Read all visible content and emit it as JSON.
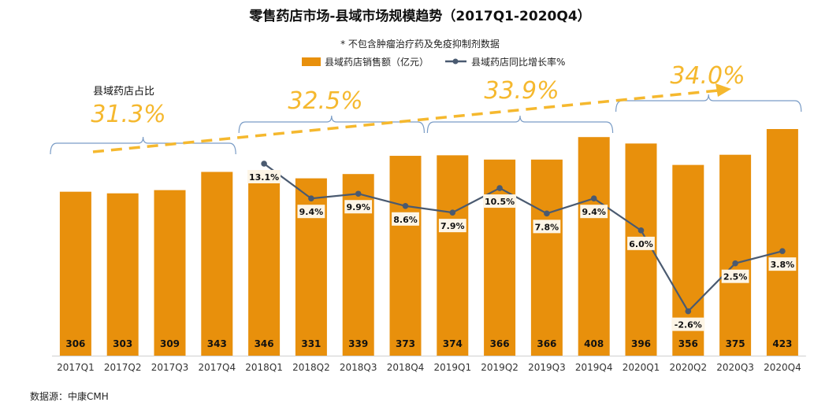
{
  "chart_data": {
    "type": "bar",
    "title": "零售药店市场-县域市场规模趋势（2017Q1-2020Q4）",
    "subtitle": "* 不包含肿瘤治疗药及免疫抑制剂数据",
    "categories": [
      "2017Q1",
      "2017Q2",
      "2017Q3",
      "2017Q4",
      "2018Q1",
      "2018Q2",
      "2018Q3",
      "2018Q4",
      "2019Q1",
      "2019Q2",
      "2019Q3",
      "2019Q4",
      "2020Q1",
      "2020Q2",
      "2020Q3",
      "2020Q4"
    ],
    "series": [
      {
        "name": "县域药店销售额（亿元）",
        "type": "bar",
        "values": [
          306,
          303,
          309,
          343,
          346,
          331,
          339,
          373,
          374,
          366,
          366,
          408,
          396,
          356,
          375,
          423
        ]
      },
      {
        "name": "县域药店同比增长率%",
        "type": "line",
        "values": [
          null,
          null,
          null,
          null,
          13.1,
          9.4,
          9.9,
          8.6,
          7.9,
          10.5,
          7.8,
          9.4,
          6.0,
          -2.6,
          2.5,
          3.8
        ],
        "labels": [
          null,
          null,
          null,
          null,
          "13.1%",
          "9.4%",
          "9.9%",
          "8.6%",
          "7.9%",
          "10.5%",
          "7.8%",
          "9.4%",
          "6.0%",
          "-2.6%",
          "2.5%",
          "3.8%"
        ]
      }
    ],
    "share_annotation": {
      "label": "县域药店占比",
      "groups": [
        {
          "text": "31.3%",
          "start": 0,
          "end": 3
        },
        {
          "text": "32.5%",
          "start": 4,
          "end": 7
        },
        {
          "text": "33.9%",
          "start": 8,
          "end": 11
        },
        {
          "text": "34.0%",
          "start": 12,
          "end": 15
        }
      ]
    },
    "source": "数据源：中康CMH",
    "ylim_bar": [
      0,
      430
    ],
    "ylim_line": [
      -5,
      15
    ]
  },
  "colors": {
    "bar": "#e8900c",
    "line": "#4a5a70",
    "accent": "#f5b82e",
    "brace": "#7a9cc6"
  }
}
